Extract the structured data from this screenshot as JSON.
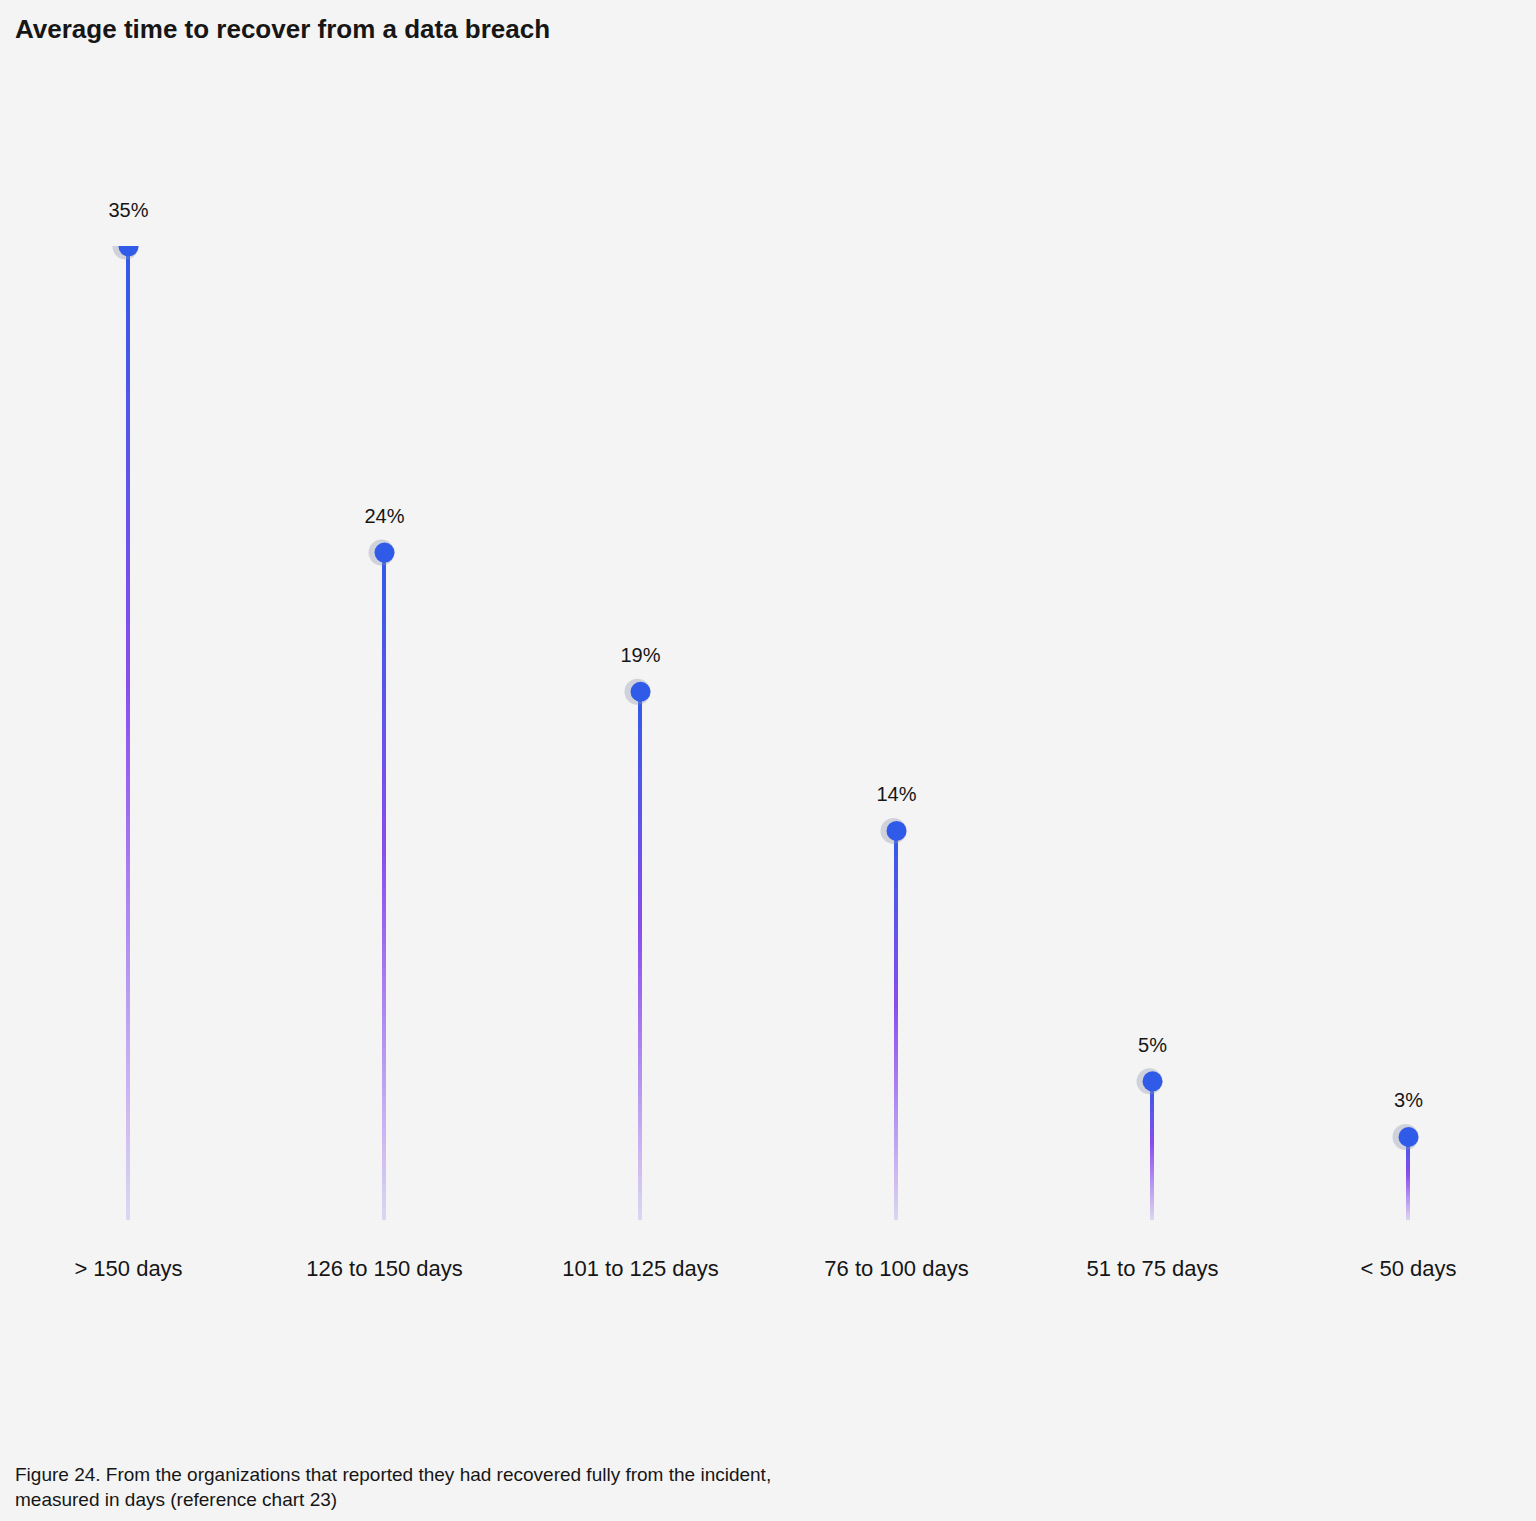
{
  "chart_data": {
    "type": "lollipop",
    "title": "Average time to recover from a data breach",
    "caption": "Figure 24. From the organizations that reported they had recovered fully from the incident, measured in days (reference chart 23)",
    "categories": [
      "> 150 days",
      "126 to 150 days",
      "101 to 125 days",
      "76 to 100 days",
      "51 to 75 days",
      "< 50 days"
    ],
    "values": [
      35,
      24,
      19,
      14,
      5,
      3
    ],
    "value_labels": [
      "35%",
      "24%",
      "19%",
      "14%",
      "5%",
      "3%"
    ],
    "data_labels": true,
    "color": "#2f5be8",
    "ylim": [
      0,
      35
    ],
    "tick_labels": "x",
    "grid": false
  }
}
